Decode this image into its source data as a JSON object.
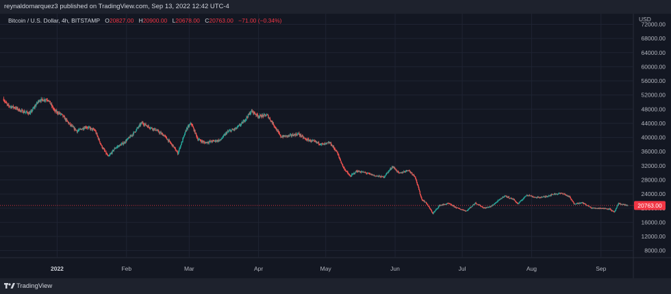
{
  "header": {
    "publisher": "reynaldomarquez3 published on TradingView.com, Sep 13, 2022 12:42 UTC-4"
  },
  "legend": {
    "symbol": "Bitcoin / U.S. Dollar, 4h, BITSTAMP",
    "o_label": "O",
    "o_value": "20827.00",
    "h_label": "H",
    "h_value": "20900.00",
    "l_label": "L",
    "l_value": "20678.00",
    "c_label": "C",
    "c_value": "20763.00",
    "change": "−71.00 (−0.34%)"
  },
  "footer": {
    "brand": "TradingView",
    "logo_icon": "tradingview-logo-icon"
  },
  "colors": {
    "up": "#26a69a",
    "down": "#ef5350",
    "background": "#131722",
    "grid": "#1f2433",
    "axis_text": "#b2b5be",
    "price_tag": "#f23645"
  },
  "chart_data": {
    "type": "candlestick",
    "currency": "USD",
    "last_price": "20763.00",
    "ylim": [
      6000,
      75000
    ],
    "y_ticks": [
      "72000.00",
      "68000.00",
      "64000.00",
      "60000.00",
      "56000.00",
      "52000.00",
      "48000.00",
      "44000.00",
      "40000.00",
      "36000.00",
      "32000.00",
      "28000.00",
      "24000.00",
      "20000.00",
      "16000.00",
      "12000.00",
      "8000.00"
    ],
    "x_range": [
      "2021-12-08",
      "2022-09-13"
    ],
    "x_ticks": [
      {
        "label": "2022",
        "date": "2022-01-01",
        "bold": true
      },
      {
        "label": "Feb",
        "date": "2022-02-01"
      },
      {
        "label": "Mar",
        "date": "2022-03-01"
      },
      {
        "label": "Apr",
        "date": "2022-04-01"
      },
      {
        "label": "May",
        "date": "2022-05-01"
      },
      {
        "label": "Jun",
        "date": "2022-06-01"
      },
      {
        "label": "Jul",
        "date": "2022-07-01"
      },
      {
        "label": "Aug",
        "date": "2022-08-01"
      },
      {
        "label": "Sep",
        "date": "2022-09-01"
      }
    ],
    "price_path": [
      [
        "2021-12-08",
        51000
      ],
      [
        "2021-12-10",
        49000
      ],
      [
        "2021-12-13",
        48500
      ],
      [
        "2021-12-16",
        47500
      ],
      [
        "2021-12-20",
        46800
      ],
      [
        "2021-12-24",
        50500
      ],
      [
        "2021-12-28",
        50800
      ],
      [
        "2021-12-31",
        47500
      ],
      [
        "2022-01-03",
        46500
      ],
      [
        "2022-01-07",
        43500
      ],
      [
        "2022-01-10",
        41800
      ],
      [
        "2022-01-14",
        43000
      ],
      [
        "2022-01-18",
        42000
      ],
      [
        "2022-01-21",
        37500
      ],
      [
        "2022-01-24",
        34500
      ],
      [
        "2022-01-27",
        37000
      ],
      [
        "2022-01-31",
        38500
      ],
      [
        "2022-02-04",
        41000
      ],
      [
        "2022-02-08",
        44200
      ],
      [
        "2022-02-11",
        43000
      ],
      [
        "2022-02-14",
        42200
      ],
      [
        "2022-02-18",
        40500
      ],
      [
        "2022-02-22",
        37500
      ],
      [
        "2022-02-24",
        35500
      ],
      [
        "2022-02-28",
        42500
      ],
      [
        "2022-03-02",
        44000
      ],
      [
        "2022-03-05",
        39500
      ],
      [
        "2022-03-08",
        38500
      ],
      [
        "2022-03-12",
        39000
      ],
      [
        "2022-03-15",
        39200
      ],
      [
        "2022-03-18",
        41500
      ],
      [
        "2022-03-22",
        42500
      ],
      [
        "2022-03-25",
        44200
      ],
      [
        "2022-03-29",
        47500
      ],
      [
        "2022-04-01",
        46000
      ],
      [
        "2022-04-05",
        46300
      ],
      [
        "2022-04-08",
        43500
      ],
      [
        "2022-04-11",
        40200
      ],
      [
        "2022-04-15",
        40500
      ],
      [
        "2022-04-19",
        41000
      ],
      [
        "2022-04-22",
        39500
      ],
      [
        "2022-04-26",
        38800
      ],
      [
        "2022-04-30",
        38000
      ],
      [
        "2022-05-03",
        38500
      ],
      [
        "2022-05-06",
        36000
      ],
      [
        "2022-05-09",
        31500
      ],
      [
        "2022-05-12",
        29000
      ],
      [
        "2022-05-15",
        30500
      ],
      [
        "2022-05-19",
        30000
      ],
      [
        "2022-05-23",
        29200
      ],
      [
        "2022-05-27",
        28800
      ],
      [
        "2022-05-31",
        31800
      ],
      [
        "2022-06-03",
        29800
      ],
      [
        "2022-06-07",
        30800
      ],
      [
        "2022-06-10",
        29000
      ],
      [
        "2022-06-13",
        22500
      ],
      [
        "2022-06-15",
        21500
      ],
      [
        "2022-06-18",
        18500
      ],
      [
        "2022-06-21",
        20800
      ],
      [
        "2022-06-25",
        21300
      ],
      [
        "2022-06-29",
        20000
      ],
      [
        "2022-07-03",
        19200
      ],
      [
        "2022-07-07",
        21500
      ],
      [
        "2022-07-11",
        20000
      ],
      [
        "2022-07-14",
        20500
      ],
      [
        "2022-07-18",
        22500
      ],
      [
        "2022-07-20",
        23500
      ],
      [
        "2022-07-24",
        22500
      ],
      [
        "2022-07-26",
        21200
      ],
      [
        "2022-07-30",
        23800
      ],
      [
        "2022-08-03",
        23000
      ],
      [
        "2022-08-07",
        23200
      ],
      [
        "2022-08-11",
        24000
      ],
      [
        "2022-08-15",
        24200
      ],
      [
        "2022-08-18",
        23200
      ],
      [
        "2022-08-20",
        21300
      ],
      [
        "2022-08-24",
        21500
      ],
      [
        "2022-08-28",
        20000
      ],
      [
        "2022-09-01",
        20000
      ],
      [
        "2022-09-05",
        19800
      ],
      [
        "2022-09-07",
        18800
      ],
      [
        "2022-09-09",
        21300
      ],
      [
        "2022-09-13",
        20763
      ]
    ]
  }
}
